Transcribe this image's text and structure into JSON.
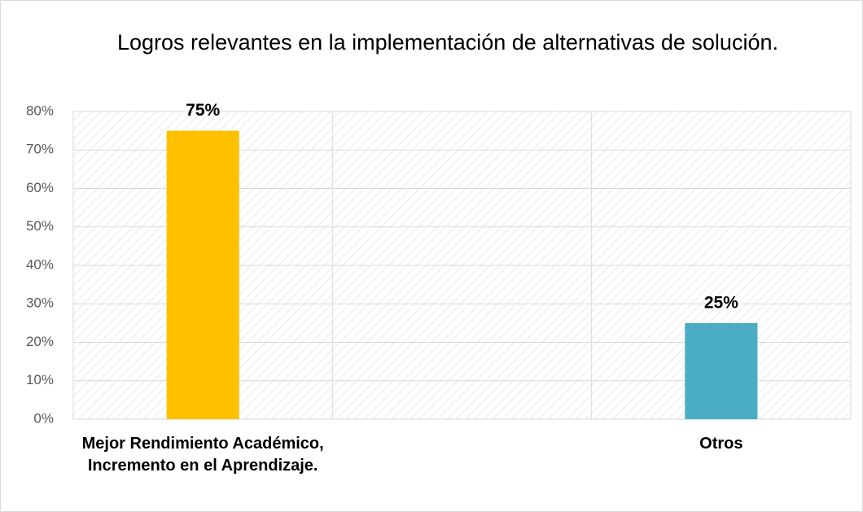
{
  "chart_data": {
    "type": "bar",
    "title": "Logros relevantes en la implementación de alternativas de solución.",
    "categories": [
      "Mejor Rendimiento Académico, Incremento en el Aprendizaje.",
      null,
      "Otros"
    ],
    "values": [
      75,
      null,
      25
    ],
    "value_labels": [
      "75%",
      null,
      "25%"
    ],
    "colors": [
      "#FFC000",
      null,
      "#4BACC6"
    ],
    "ylim": [
      0,
      80
    ],
    "yticks": [
      {
        "value": 0,
        "label": "0%"
      },
      {
        "value": 10,
        "label": "10%"
      },
      {
        "value": 20,
        "label": "20%"
      },
      {
        "value": 30,
        "label": "30%"
      },
      {
        "value": 40,
        "label": "40%"
      },
      {
        "value": 50,
        "label": "50%"
      },
      {
        "value": 60,
        "label": "60%"
      },
      {
        "value": 70,
        "label": "70%"
      },
      {
        "value": 80,
        "label": "80%"
      }
    ],
    "grid": true
  }
}
